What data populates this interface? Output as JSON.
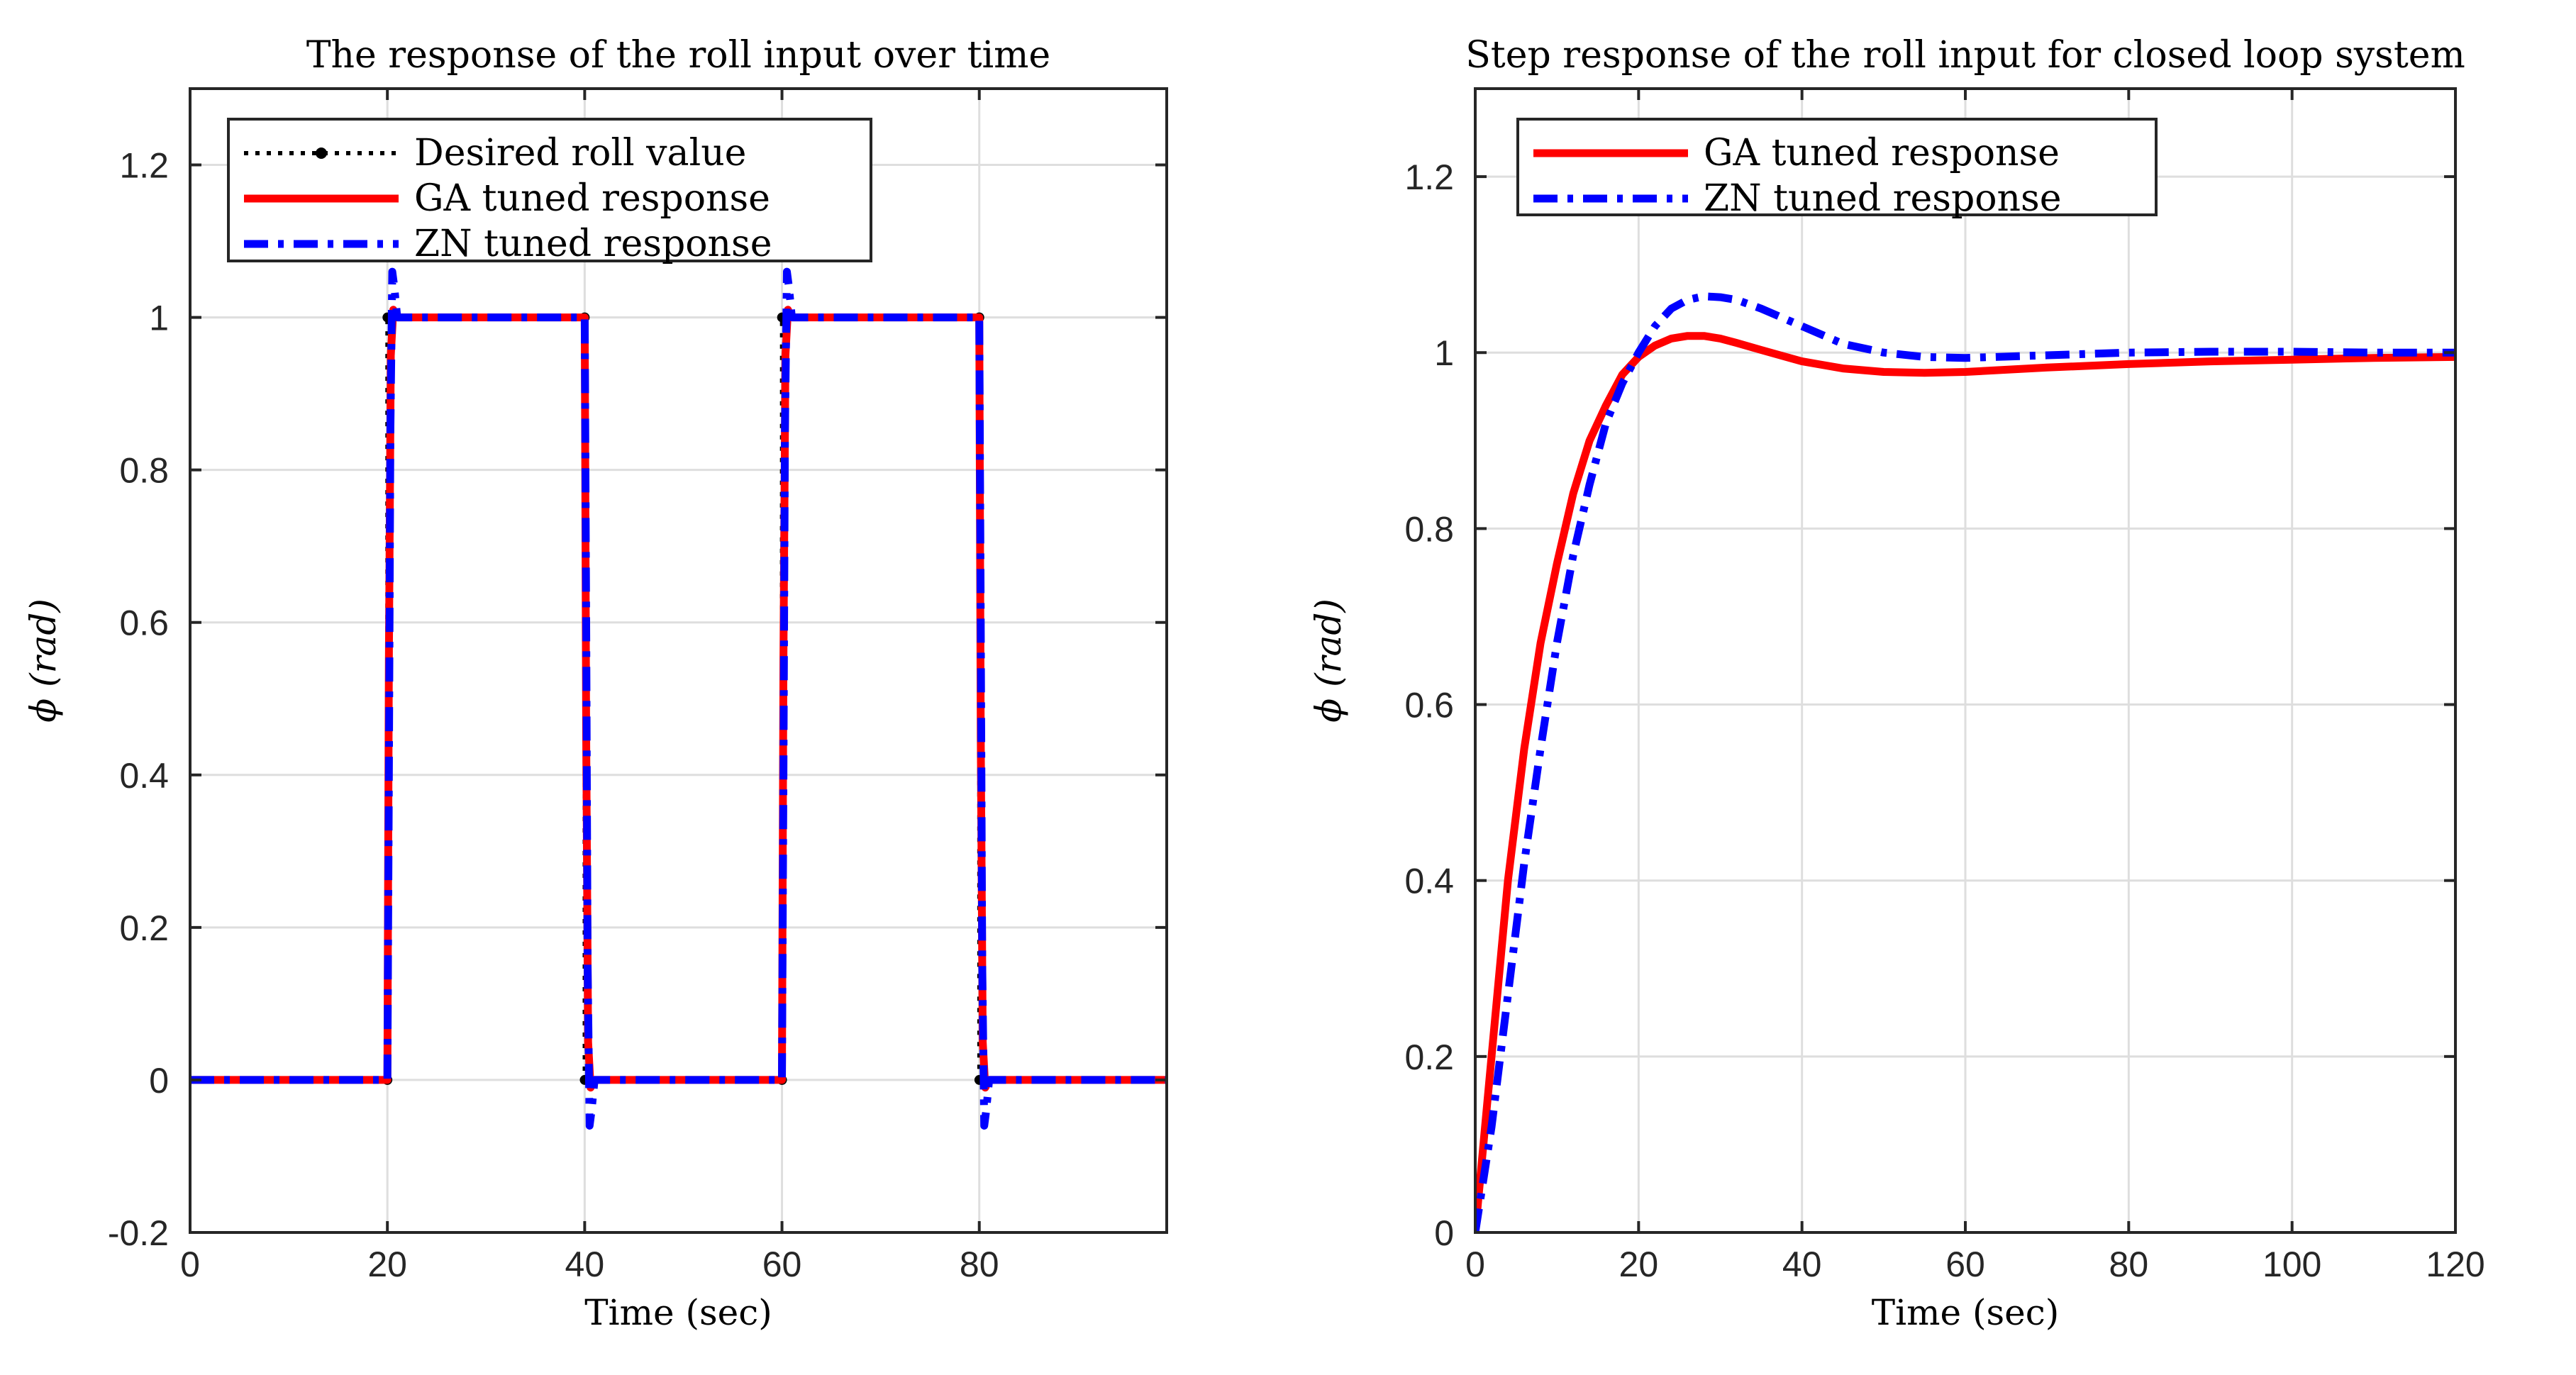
{
  "chart_data": [
    {
      "type": "line",
      "title": "The response of the roll input over time",
      "xlabel": "Time (sec)",
      "ylabel": "ϕ (rad)",
      "xlim": [
        0,
        99
      ],
      "ylim": [
        -0.2,
        1.3
      ],
      "xticks": [
        0,
        20,
        40,
        60,
        80
      ],
      "yticks": [
        -0.2,
        0,
        0.2,
        0.4,
        0.6,
        0.8,
        1,
        1.2
      ],
      "ytick_labels": [
        "-0.2",
        "0",
        "0.2",
        "0.4",
        "0.6",
        "0.8",
        "1",
        "1.2"
      ],
      "grid": true,
      "legend_position": "top-left",
      "series": [
        {
          "name": "Desired roll value",
          "style": "dotted-markers",
          "color": "#000000",
          "x": [
            0,
            20,
            20.01,
            40,
            40.01,
            60,
            60.01,
            80,
            80.01,
            99
          ],
          "y": [
            0,
            0,
            1,
            1,
            0,
            0,
            1,
            1,
            0,
            0
          ]
        },
        {
          "name": "GA tuned response",
          "style": "solid",
          "color": "#ff0000",
          "x": [
            0,
            20,
            20.15,
            20.35,
            20.6,
            21,
            40,
            40.15,
            40.35,
            40.6,
            41,
            60,
            60.15,
            60.35,
            60.6,
            61,
            80,
            80.15,
            80.35,
            80.6,
            81,
            99
          ],
          "y": [
            0,
            0,
            0.55,
            0.95,
            1.01,
            1,
            1,
            0.45,
            0.05,
            -0.01,
            0,
            0,
            0.55,
            0.95,
            1.01,
            1,
            1,
            0.45,
            0.05,
            -0.01,
            0,
            0
          ]
        },
        {
          "name": "ZN tuned response",
          "style": "dash-dot",
          "color": "#0000ff",
          "x": [
            0,
            20,
            20.15,
            20.3,
            20.5,
            20.7,
            21,
            21.4,
            40,
            40.15,
            40.3,
            40.5,
            40.7,
            41,
            41.4,
            60,
            60.15,
            60.3,
            60.5,
            60.7,
            61,
            61.4,
            80,
            80.15,
            80.3,
            80.5,
            80.7,
            81,
            81.4,
            99
          ],
          "y": [
            0,
            0,
            0.4,
            0.85,
            1.06,
            1.04,
            1.0,
            1.0,
            1,
            0.6,
            0.15,
            -0.06,
            -0.04,
            0.0,
            0.0,
            0,
            0.4,
            0.85,
            1.06,
            1.04,
            1.0,
            1.0,
            1,
            0.6,
            0.15,
            -0.06,
            -0.04,
            0.0,
            0.0,
            0
          ]
        }
      ]
    },
    {
      "type": "line",
      "title": "Step response of the roll input for closed loop system",
      "xlabel": "Time (sec)",
      "ylabel": "ϕ (rad)",
      "xlim": [
        0,
        120
      ],
      "ylim": [
        0,
        1.3
      ],
      "xticks": [
        0,
        20,
        40,
        60,
        80,
        100,
        120
      ],
      "yticks": [
        0,
        0.2,
        0.4,
        0.6,
        0.8,
        1,
        1.2
      ],
      "ytick_labels": [
        "0",
        "0.2",
        "0.4",
        "0.6",
        "0.8",
        "1",
        "1.2"
      ],
      "grid": true,
      "legend_position": "top-left",
      "series": [
        {
          "name": "GA tuned response",
          "style": "solid",
          "color": "#ff0000",
          "x": [
            0,
            2,
            4,
            6,
            8,
            10,
            12,
            14,
            16,
            18,
            20,
            22,
            24,
            26,
            28,
            30,
            32,
            35,
            40,
            45,
            50,
            55,
            60,
            70,
            80,
            90,
            100,
            110,
            120
          ],
          "y": [
            0,
            0.2,
            0.4,
            0.55,
            0.67,
            0.76,
            0.84,
            0.9,
            0.94,
            0.975,
            0.995,
            1.008,
            1.016,
            1.019,
            1.019,
            1.016,
            1.011,
            1.003,
            0.99,
            0.982,
            0.978,
            0.977,
            0.978,
            0.983,
            0.987,
            0.99,
            0.992,
            0.994,
            0.995
          ]
        },
        {
          "name": "ZN tuned response",
          "style": "dash-dot",
          "color": "#0000ff",
          "x": [
            0,
            2,
            4,
            6,
            8,
            10,
            12,
            14,
            16,
            18,
            20,
            22,
            24,
            26,
            28,
            30,
            32,
            35,
            40,
            45,
            50,
            55,
            60,
            70,
            80,
            90,
            100,
            110,
            120
          ],
          "y": [
            0,
            0.12,
            0.27,
            0.42,
            0.55,
            0.67,
            0.77,
            0.85,
            0.92,
            0.965,
            1.0,
            1.03,
            1.05,
            1.06,
            1.064,
            1.063,
            1.06,
            1.05,
            1.03,
            1.01,
            1.0,
            0.995,
            0.994,
            0.997,
            1.0,
            1.001,
            1.001,
            1.0,
            1.0
          ]
        }
      ]
    }
  ]
}
